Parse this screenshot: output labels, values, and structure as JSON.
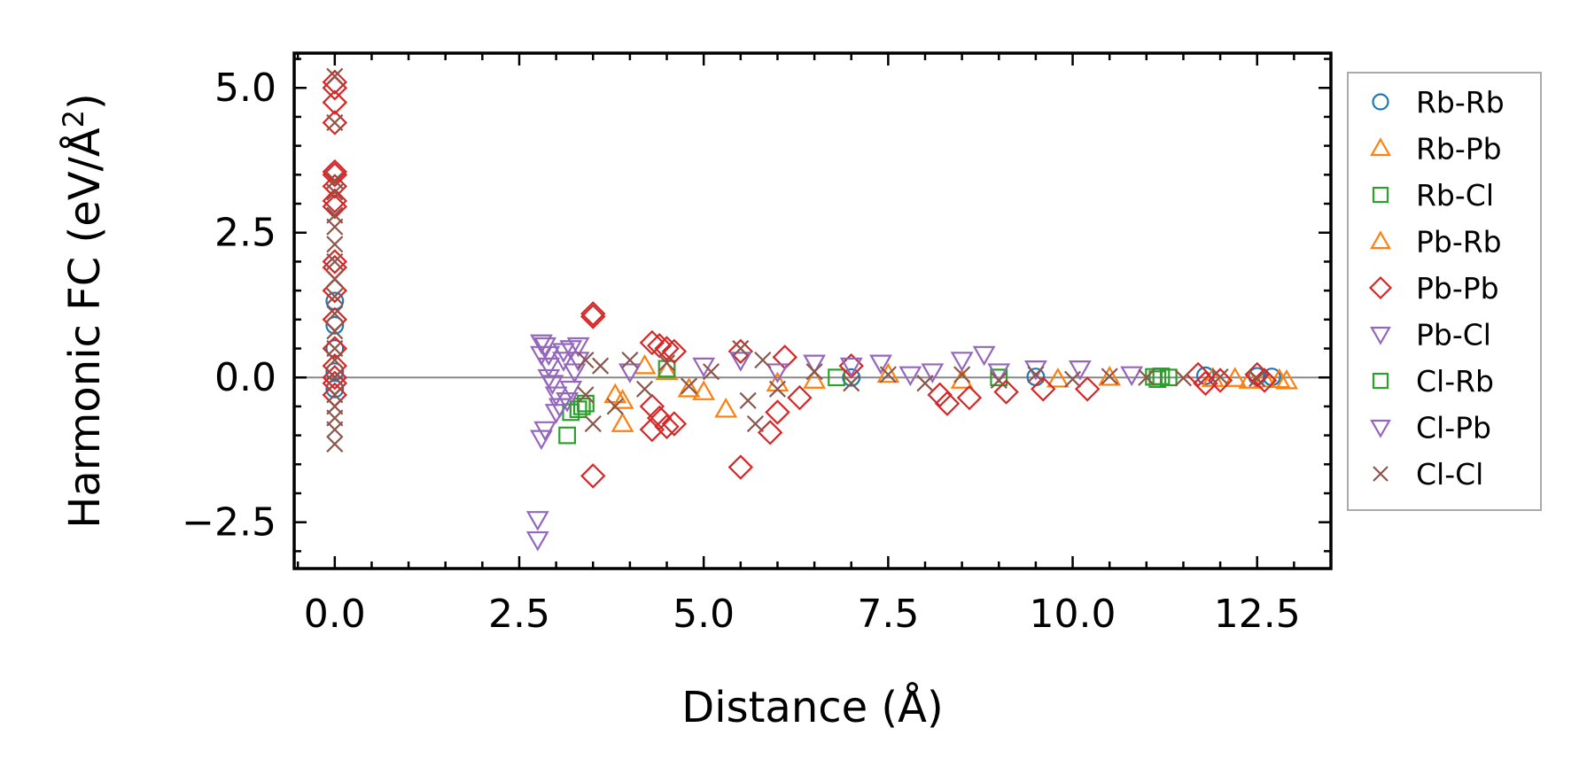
{
  "chart_data": {
    "type": "scatter",
    "xlabel": "Distance (Å)",
    "ylabel_text": "Harmonic FC (eV/Å",
    "ylabel_sup": "2",
    "ylabel_close": ")",
    "xlim": [
      -0.55,
      13.5
    ],
    "ylim": [
      -3.3,
      5.6
    ],
    "xticks": [
      {
        "value": 0.0,
        "label": "0.0"
      },
      {
        "value": 2.5,
        "label": "2.5"
      },
      {
        "value": 5.0,
        "label": "5.0"
      },
      {
        "value": 7.5,
        "label": "7.5"
      },
      {
        "value": 10.0,
        "label": "10.0"
      },
      {
        "value": 12.5,
        "label": "12.5"
      }
    ],
    "yticks": [
      {
        "value": -2.5,
        "label": "−2.5"
      },
      {
        "value": 0.0,
        "label": "0.0"
      },
      {
        "value": 2.5,
        "label": "2.5"
      },
      {
        "value": 5.0,
        "label": "5.0"
      }
    ],
    "x_minor_step": 0.5,
    "y_minor_step": 0.5,
    "zero_line": true,
    "legend_position": "outside-right",
    "series": [
      {
        "name": "Rb-Rb",
        "marker": "circle",
        "color": "#1f77b4",
        "points": [
          [
            0,
            1.32
          ],
          [
            0,
            0.9
          ],
          [
            0,
            0.5
          ],
          [
            0,
            0.1
          ],
          [
            0,
            -0.2
          ],
          [
            12.5,
            0.02
          ],
          [
            12.7,
            0.01
          ],
          [
            11.8,
            0.03
          ],
          [
            9.5,
            0.01
          ],
          [
            7.0,
            0.0
          ]
        ]
      },
      {
        "name": "Rb-Pb",
        "marker": "triangle-up",
        "color": "#ff7f0e",
        "points": [
          [
            3.9,
            -0.8
          ],
          [
            3.9,
            -0.4
          ],
          [
            4.8,
            -0.2
          ],
          [
            5.3,
            -0.55
          ],
          [
            4.5,
            0.1
          ],
          [
            6.5,
            -0.05
          ],
          [
            12.2,
            -0.02
          ],
          [
            12.4,
            -0.05
          ],
          [
            12.8,
            -0.04
          ],
          [
            12.9,
            -0.06
          ],
          [
            10.5,
            0.0
          ],
          [
            8.5,
            -0.05
          ]
        ]
      },
      {
        "name": "Rb-Cl",
        "marker": "square",
        "color": "#2ca02c",
        "points": [
          [
            3.15,
            -1.0
          ],
          [
            3.3,
            -0.55
          ],
          [
            3.35,
            -0.5
          ],
          [
            4.5,
            0.15
          ],
          [
            11.2,
            0.02
          ],
          [
            11.3,
            0.0
          ],
          [
            6.8,
            0.0
          ],
          [
            9.0,
            0.0
          ]
        ]
      },
      {
        "name": "Pb-Rb",
        "marker": "triangle-up",
        "color": "#ff7f0e",
        "points": [
          [
            3.8,
            -0.3
          ],
          [
            4.2,
            0.2
          ],
          [
            5.0,
            -0.25
          ],
          [
            6.0,
            -0.1
          ],
          [
            7.5,
            0.05
          ],
          [
            9.8,
            -0.03
          ],
          [
            12.6,
            -0.03
          ],
          [
            11.9,
            -0.02
          ]
        ]
      },
      {
        "name": "Pb-Pb",
        "marker": "diamond",
        "color": "#d62728",
        "points": [
          [
            0,
            5.1
          ],
          [
            0,
            5.0
          ],
          [
            0,
            4.75
          ],
          [
            0,
            4.4
          ],
          [
            0,
            3.55
          ],
          [
            0,
            3.5
          ],
          [
            0,
            3.3
          ],
          [
            0,
            3.05
          ],
          [
            0,
            2.95
          ],
          [
            0,
            2.0
          ],
          [
            0,
            1.9
          ],
          [
            0,
            1.5
          ],
          [
            0,
            1.0
          ],
          [
            0,
            0.5
          ],
          [
            0,
            0.2
          ],
          [
            0,
            0.0
          ],
          [
            0,
            -0.1
          ],
          [
            0,
            -0.3
          ],
          [
            3.5,
            1.1
          ],
          [
            3.5,
            1.05
          ],
          [
            3.5,
            -1.7
          ],
          [
            4.3,
            0.6
          ],
          [
            4.4,
            0.55
          ],
          [
            4.5,
            0.5
          ],
          [
            4.6,
            0.45
          ],
          [
            4.3,
            -0.5
          ],
          [
            4.4,
            -0.7
          ],
          [
            4.5,
            -0.85
          ],
          [
            4.3,
            -0.9
          ],
          [
            4.6,
            -0.8
          ],
          [
            5.5,
            0.45
          ],
          [
            5.5,
            -1.55
          ],
          [
            5.9,
            -0.95
          ],
          [
            6.0,
            -0.6
          ],
          [
            6.1,
            0.35
          ],
          [
            6.3,
            -0.35
          ],
          [
            7.0,
            0.2
          ],
          [
            8.2,
            -0.3
          ],
          [
            8.3,
            -0.45
          ],
          [
            8.6,
            -0.35
          ],
          [
            9.1,
            -0.25
          ],
          [
            9.6,
            -0.2
          ],
          [
            10.2,
            -0.2
          ],
          [
            11.7,
            0.05
          ],
          [
            11.8,
            -0.1
          ],
          [
            12.0,
            -0.05
          ],
          [
            12.5,
            0.05
          ],
          [
            12.6,
            -0.05
          ]
        ]
      },
      {
        "name": "Pb-Cl",
        "marker": "triangle-down",
        "color": "#9467bd",
        "points": [
          [
            2.75,
            -2.45
          ],
          [
            2.75,
            -2.8
          ],
          [
            2.8,
            -1.05
          ],
          [
            2.85,
            -0.9
          ],
          [
            2.8,
            0.6
          ],
          [
            2.85,
            0.55
          ],
          [
            2.9,
            0.4
          ],
          [
            2.9,
            0.2
          ],
          [
            2.95,
            -0.1
          ],
          [
            3.0,
            -0.3
          ],
          [
            3.05,
            -0.5
          ],
          [
            3.1,
            0.3
          ],
          [
            3.2,
            0.5
          ],
          [
            3.3,
            0.55
          ],
          [
            3.15,
            -0.4
          ],
          [
            3.25,
            0.1
          ],
          [
            5.0,
            0.2
          ],
          [
            5.5,
            0.3
          ],
          [
            6.5,
            0.25
          ],
          [
            7.0,
            0.2
          ],
          [
            7.4,
            0.25
          ],
          [
            8.1,
            0.1
          ],
          [
            8.8,
            0.4
          ],
          [
            8.5,
            0.3
          ],
          [
            9.5,
            0.15
          ],
          [
            10.1,
            0.15
          ],
          [
            10.8,
            0.05
          ]
        ]
      },
      {
        "name": "Cl-Rb",
        "marker": "square",
        "color": "#2ca02c",
        "points": [
          [
            3.2,
            -0.6
          ],
          [
            3.4,
            -0.45
          ],
          [
            11.1,
            0.01
          ],
          [
            11.15,
            -0.03
          ]
        ]
      },
      {
        "name": "Cl-Pb",
        "marker": "triangle-down",
        "color": "#9467bd",
        "points": [
          [
            2.8,
            0.4
          ],
          [
            2.9,
            0.0
          ],
          [
            3.0,
            -0.6
          ],
          [
            3.1,
            0.45
          ],
          [
            3.2,
            -0.2
          ],
          [
            3.3,
            0.3
          ],
          [
            4.0,
            0.1
          ],
          [
            6.0,
            0.1
          ],
          [
            7.8,
            0.05
          ],
          [
            9.0,
            0.1
          ]
        ]
      },
      {
        "name": "Cl-Cl",
        "marker": "x",
        "color": "#8c564b",
        "points": [
          [
            0,
            5.2
          ],
          [
            0,
            4.4
          ],
          [
            0,
            3.4
          ],
          [
            0,
            3.2
          ],
          [
            0,
            2.8
          ],
          [
            0,
            2.6
          ],
          [
            0,
            2.3
          ],
          [
            0,
            2.0
          ],
          [
            0,
            1.7
          ],
          [
            0,
            1.4
          ],
          [
            0,
            1.1
          ],
          [
            0,
            0.8
          ],
          [
            0,
            0.5
          ],
          [
            0,
            0.3
          ],
          [
            0,
            0.0
          ],
          [
            0,
            -0.3
          ],
          [
            0,
            -0.5
          ],
          [
            0,
            -0.7
          ],
          [
            0,
            -0.9
          ],
          [
            0,
            -1.15
          ],
          [
            3.4,
            0.3
          ],
          [
            3.4,
            -0.3
          ],
          [
            3.5,
            -0.8
          ],
          [
            3.6,
            0.2
          ],
          [
            3.8,
            -0.5
          ],
          [
            4.0,
            0.3
          ],
          [
            4.2,
            -0.2
          ],
          [
            4.5,
            0.25
          ],
          [
            4.8,
            -0.15
          ],
          [
            5.1,
            0.1
          ],
          [
            5.5,
            0.5
          ],
          [
            5.6,
            -0.4
          ],
          [
            5.7,
            -0.8
          ],
          [
            5.8,
            0.3
          ],
          [
            6.0,
            -0.2
          ],
          [
            6.5,
            0.1
          ],
          [
            7.0,
            -0.1
          ],
          [
            7.5,
            0.05
          ],
          [
            8.0,
            -0.1
          ],
          [
            8.5,
            0.05
          ],
          [
            9.0,
            -0.05
          ],
          [
            9.5,
            0.05
          ],
          [
            10.0,
            -0.03
          ],
          [
            10.5,
            0.02
          ],
          [
            11.0,
            0.0
          ],
          [
            11.5,
            -0.01
          ],
          [
            12.0,
            0.01
          ],
          [
            12.5,
            -0.02
          ]
        ]
      }
    ]
  }
}
